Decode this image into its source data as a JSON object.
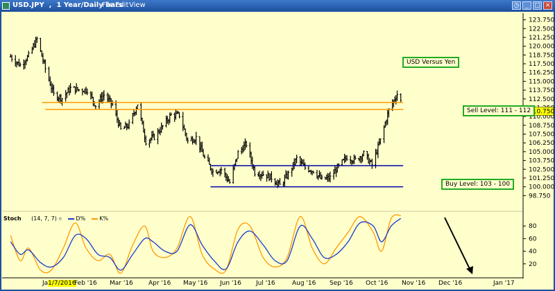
{
  "window": {
    "title": "USD.JPY  ,  1 Year/Daily bars",
    "menu": [
      "File",
      "Edit",
      "View"
    ]
  },
  "annotations": {
    "chart_title": "USD Versus Yen",
    "sell_level": "Sell Level: 111 - 112",
    "buy_level": "Buy Level: 103 - 100"
  },
  "stoch": {
    "label": "Stoch",
    "params": "(14, 7, 7)",
    "d_label": "D%",
    "k_label": "K%",
    "e": "e"
  },
  "x_axis": {
    "start_date": "1/7/2016",
    "start_prefix": "Ja",
    "ticks": [
      "Feb '16",
      "Mar '16",
      "Apr '16",
      "May '16",
      "Jun '16",
      "Jul '16",
      "Aug '16",
      "Sep '16",
      "Oct '16",
      "Nov '16",
      "Dec '16",
      "Jan '17"
    ]
  },
  "colors": {
    "background": "#ffffcc",
    "bars": "#000000",
    "resistance_lines": "#ff9900",
    "support_lines": "#0000aa",
    "stoch_d": "#1a3ccc",
    "stoch_k": "#ff9900",
    "annotation_border": "#22aa22",
    "last_price_box": "#ffff00"
  },
  "chart_data": [
    {
      "type": "ohlc",
      "title": "USD.JPY, 1 Year/Daily bars",
      "y_ticks": [
        98.75,
        100.0,
        101.25,
        102.5,
        103.75,
        105.0,
        106.25,
        107.5,
        108.75,
        110.0,
        111.25,
        112.5,
        113.75,
        115.0,
        116.25,
        117.5,
        118.75,
        120.0,
        121.25,
        122.5,
        123.75
      ],
      "ylim": [
        97.5,
        124.5
      ],
      "last_price": 110.75,
      "x": [
        "Jan '16",
        "Feb '16",
        "Mar '16",
        "Apr '16",
        "May '16",
        "Jun '16",
        "Jul '16",
        "Aug '16",
        "Sep '16",
        "Oct '16",
        "Nov '16",
        "Dec '16"
      ],
      "approx_close_path": [
        [
          "2016-01-07",
          118.5
        ],
        [
          "2016-01-15",
          117.3
        ],
        [
          "2016-01-22",
          118.6
        ],
        [
          "2016-01-29",
          121.0
        ],
        [
          "2016-02-05",
          116.8
        ],
        [
          "2016-02-12",
          113.1
        ],
        [
          "2016-02-19",
          112.6
        ],
        [
          "2016-02-26",
          114.0
        ],
        [
          "2016-03-04",
          113.8
        ],
        [
          "2016-03-11",
          113.8
        ],
        [
          "2016-03-18",
          111.6
        ],
        [
          "2016-03-25",
          113.1
        ],
        [
          "2016-04-01",
          111.7
        ],
        [
          "2016-04-08",
          108.1
        ],
        [
          "2016-04-15",
          108.8
        ],
        [
          "2016-04-22",
          111.8
        ],
        [
          "2016-04-29",
          106.5
        ],
        [
          "2016-05-06",
          107.1
        ],
        [
          "2016-05-13",
          108.6
        ],
        [
          "2016-05-20",
          110.2
        ],
        [
          "2016-05-27",
          110.2
        ],
        [
          "2016-06-03",
          106.5
        ],
        [
          "2016-06-10",
          107.0
        ],
        [
          "2016-06-17",
          104.1
        ],
        [
          "2016-06-24",
          102.2
        ],
        [
          "2016-07-01",
          102.5
        ],
        [
          "2016-07-08",
          100.6
        ],
        [
          "2016-07-15",
          104.8
        ],
        [
          "2016-07-22",
          106.1
        ],
        [
          "2016-07-29",
          102.1
        ],
        [
          "2016-08-05",
          101.8
        ],
        [
          "2016-08-12",
          101.3
        ],
        [
          "2016-08-19",
          100.2
        ],
        [
          "2016-08-26",
          101.8
        ],
        [
          "2016-09-02",
          104.0
        ],
        [
          "2016-09-09",
          102.7
        ],
        [
          "2016-09-16",
          102.3
        ],
        [
          "2016-09-23",
          101.0
        ],
        [
          "2016-09-30",
          101.3
        ],
        [
          "2016-10-07",
          102.9
        ],
        [
          "2016-10-14",
          104.2
        ],
        [
          "2016-10-21",
          103.8
        ],
        [
          "2016-10-28",
          104.7
        ],
        [
          "2016-11-04",
          103.1
        ],
        [
          "2016-11-11",
          106.6
        ],
        [
          "2016-11-18",
          110.9
        ],
        [
          "2016-11-25",
          113.2
        ],
        [
          "2016-11-28",
          112.2
        ]
      ],
      "horizontal_lines": [
        {
          "name": "Sell Level upper",
          "value": 112.0,
          "from": "2016-02-02",
          "to": "2016-11-30",
          "color": "#ff9900"
        },
        {
          "name": "Sell Level lower",
          "value": 111.0,
          "from": "2016-02-05",
          "to": "2016-11-30",
          "color": "#ff9900"
        },
        {
          "name": "Buy Level upper",
          "value": 103.0,
          "from": "2016-06-22",
          "to": "2016-11-30",
          "color": "#0000aa"
        },
        {
          "name": "Buy Level lower",
          "value": 100.0,
          "from": "2016-06-22",
          "to": "2016-11-30",
          "color": "#0000aa"
        }
      ]
    },
    {
      "type": "line",
      "title": "Stoch (14, 7, 7)",
      "y_ticks": [
        20,
        40,
        60,
        80
      ],
      "ylim": [
        0,
        100
      ],
      "series": [
        {
          "name": "D%",
          "color": "#1a3ccc",
          "values": [
            [
              "2016-01-07",
              55
            ],
            [
              "2016-01-15",
              35
            ],
            [
              "2016-01-22",
              42
            ],
            [
              "2016-02-01",
              22
            ],
            [
              "2016-02-10",
              15
            ],
            [
              "2016-02-20",
              30
            ],
            [
              "2016-03-01",
              65
            ],
            [
              "2016-03-10",
              60
            ],
            [
              "2016-03-20",
              35
            ],
            [
              "2016-03-30",
              30
            ],
            [
              "2016-04-08",
              10
            ],
            [
              "2016-04-18",
              35
            ],
            [
              "2016-04-28",
              60
            ],
            [
              "2016-05-05",
              55
            ],
            [
              "2016-05-15",
              40
            ],
            [
              "2016-05-25",
              40
            ],
            [
              "2016-06-05",
              82
            ],
            [
              "2016-06-15",
              50
            ],
            [
              "2016-06-25",
              25
            ],
            [
              "2016-07-05",
              12
            ],
            [
              "2016-07-15",
              55
            ],
            [
              "2016-07-25",
              72
            ],
            [
              "2016-08-05",
              50
            ],
            [
              "2016-08-15",
              25
            ],
            [
              "2016-08-25",
              25
            ],
            [
              "2016-09-05",
              80
            ],
            [
              "2016-09-15",
              60
            ],
            [
              "2016-09-25",
              30
            ],
            [
              "2016-10-05",
              35
            ],
            [
              "2016-10-15",
              55
            ],
            [
              "2016-10-25",
              85
            ],
            [
              "2016-11-05",
              80
            ],
            [
              "2016-11-12",
              55
            ],
            [
              "2016-11-20",
              80
            ],
            [
              "2016-11-28",
              92
            ]
          ]
        },
        {
          "name": "K%",
          "color": "#ff9900",
          "values": [
            [
              "2016-01-07",
              65
            ],
            [
              "2016-01-15",
              25
            ],
            [
              "2016-01-22",
              45
            ],
            [
              "2016-02-01",
              10
            ],
            [
              "2016-02-10",
              10
            ],
            [
              "2016-02-20",
              45
            ],
            [
              "2016-03-01",
              85
            ],
            [
              "2016-03-10",
              45
            ],
            [
              "2016-03-20",
              25
            ],
            [
              "2016-03-30",
              35
            ],
            [
              "2016-04-08",
              5
            ],
            [
              "2016-04-18",
              50
            ],
            [
              "2016-04-28",
              80
            ],
            [
              "2016-05-05",
              40
            ],
            [
              "2016-05-15",
              30
            ],
            [
              "2016-05-25",
              45
            ],
            [
              "2016-06-05",
              95
            ],
            [
              "2016-06-15",
              35
            ],
            [
              "2016-06-25",
              12
            ],
            [
              "2016-07-05",
              10
            ],
            [
              "2016-07-15",
              75
            ],
            [
              "2016-07-25",
              80
            ],
            [
              "2016-08-05",
              30
            ],
            [
              "2016-08-15",
              15
            ],
            [
              "2016-08-25",
              30
            ],
            [
              "2016-09-05",
              95
            ],
            [
              "2016-09-15",
              45
            ],
            [
              "2016-09-25",
              20
            ],
            [
              "2016-10-05",
              45
            ],
            [
              "2016-10-15",
              70
            ],
            [
              "2016-10-25",
              95
            ],
            [
              "2016-11-05",
              70
            ],
            [
              "2016-11-12",
              40
            ],
            [
              "2016-11-20",
              92
            ],
            [
              "2016-11-28",
              97
            ]
          ]
        }
      ]
    }
  ]
}
